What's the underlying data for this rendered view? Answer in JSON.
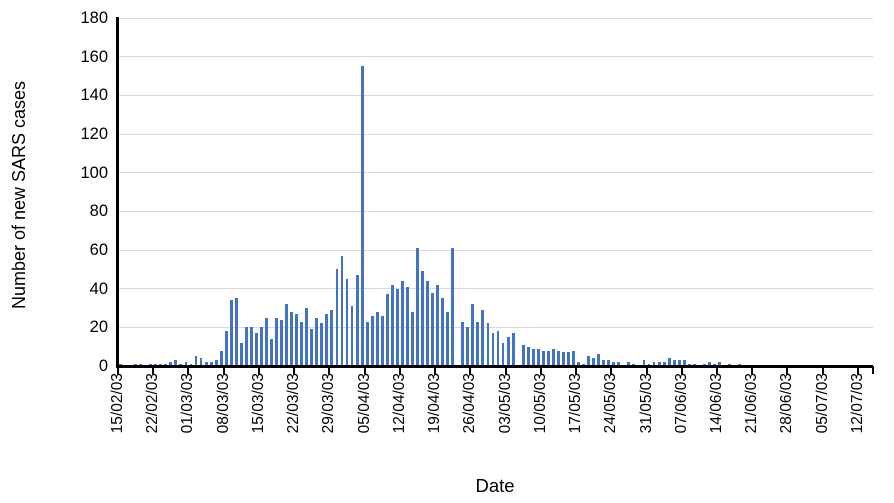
{
  "chart_data": {
    "type": "bar",
    "title": "",
    "xlabel": "Date",
    "ylabel": "Number of new SARS cases",
    "ylim": [
      0,
      180
    ],
    "ytick_step": 20,
    "x_tick_label_every": 7,
    "grid": "horizontal",
    "legend": "none",
    "bar_color": "#4472C4",
    "grid_color": "#D9D9D9",
    "axis_color": "#000000",
    "background_color": "#FFFFFF",
    "categories": [
      "15/02/03",
      "16/02/03",
      "17/02/03",
      "18/02/03",
      "19/02/03",
      "20/02/03",
      "21/02/03",
      "22/02/03",
      "23/02/03",
      "24/02/03",
      "25/02/03",
      "26/02/03",
      "27/02/03",
      "28/02/03",
      "01/03/03",
      "02/03/03",
      "03/03/03",
      "04/03/03",
      "05/03/03",
      "06/03/03",
      "07/03/03",
      "08/03/03",
      "09/03/03",
      "10/03/03",
      "11/03/03",
      "12/03/03",
      "13/03/03",
      "14/03/03",
      "15/03/03",
      "16/03/03",
      "17/03/03",
      "18/03/03",
      "19/03/03",
      "20/03/03",
      "21/03/03",
      "22/03/03",
      "23/03/03",
      "24/03/03",
      "25/03/03",
      "26/03/03",
      "27/03/03",
      "28/03/03",
      "29/03/03",
      "30/03/03",
      "31/03/03",
      "01/04/03",
      "02/04/03",
      "03/04/03",
      "04/04/03",
      "05/04/03",
      "06/04/03",
      "07/04/03",
      "08/04/03",
      "09/04/03",
      "10/04/03",
      "11/04/03",
      "12/04/03",
      "13/04/03",
      "14/04/03",
      "15/04/03",
      "16/04/03",
      "17/04/03",
      "18/04/03",
      "19/04/03",
      "20/04/03",
      "21/04/03",
      "22/04/03",
      "23/04/03",
      "24/04/03",
      "25/04/03",
      "26/04/03",
      "27/04/03",
      "28/04/03",
      "29/04/03",
      "30/04/03",
      "01/05/03",
      "02/05/03",
      "03/05/03",
      "04/05/03",
      "05/05/03",
      "06/05/03",
      "07/05/03",
      "08/05/03",
      "09/05/03",
      "10/05/03",
      "11/05/03",
      "12/05/03",
      "13/05/03",
      "14/05/03",
      "15/05/03",
      "16/05/03",
      "17/05/03",
      "18/05/03",
      "19/05/03",
      "20/05/03",
      "21/05/03",
      "22/05/03",
      "23/05/03",
      "24/05/03",
      "25/05/03",
      "26/05/03",
      "27/05/03",
      "28/05/03",
      "29/05/03",
      "30/05/03",
      "31/05/03",
      "01/06/03",
      "02/06/03",
      "03/06/03",
      "04/06/03",
      "05/06/03",
      "06/06/03",
      "07/06/03",
      "08/06/03",
      "09/06/03",
      "10/06/03",
      "11/06/03",
      "12/06/03",
      "13/06/03",
      "14/06/03",
      "15/06/03",
      "16/06/03",
      "17/06/03",
      "18/06/03",
      "19/06/03",
      "20/06/03",
      "21/06/03",
      "22/06/03",
      "23/06/03",
      "24/06/03",
      "25/06/03",
      "26/06/03",
      "27/06/03",
      "28/06/03",
      "29/06/03",
      "30/06/03",
      "01/07/03",
      "02/07/03",
      "03/07/03",
      "04/07/03",
      "05/07/03",
      "06/07/03",
      "07/07/03",
      "08/07/03",
      "09/07/03",
      "10/07/03",
      "11/07/03",
      "12/07/03"
    ],
    "values": [
      1,
      0,
      0,
      1,
      1,
      0,
      1,
      1,
      1,
      1,
      2,
      3,
      1,
      2,
      1,
      5,
      4,
      2,
      2,
      3,
      8,
      18,
      34,
      35,
      12,
      20,
      20,
      17,
      20,
      25,
      14,
      25,
      24,
      32,
      28,
      27,
      23,
      30,
      19,
      25,
      22,
      27,
      29,
      50,
      57,
      45,
      31,
      47,
      155,
      23,
      26,
      28,
      26,
      37,
      42,
      40,
      44,
      41,
      28,
      61,
      49,
      44,
      38,
      42,
      35,
      28,
      61,
      0,
      23,
      20,
      32,
      23,
      29,
      22,
      17,
      18,
      12,
      15,
      17,
      0,
      11,
      10,
      9,
      9,
      8,
      8,
      9,
      8,
      7,
      7,
      8,
      2,
      1,
      5,
      4,
      6,
      3,
      3,
      2,
      2,
      0,
      2,
      1,
      0,
      3,
      1,
      2,
      2,
      2,
      4,
      3,
      3,
      3,
      1,
      1,
      0,
      1,
      2,
      1,
      2,
      0,
      1,
      0,
      1,
      0,
      0,
      0,
      0,
      0,
      0,
      0,
      0,
      0,
      0,
      0,
      0,
      0,
      0,
      0,
      0,
      0,
      0,
      0,
      0,
      0,
      0,
      0,
      0
    ]
  }
}
